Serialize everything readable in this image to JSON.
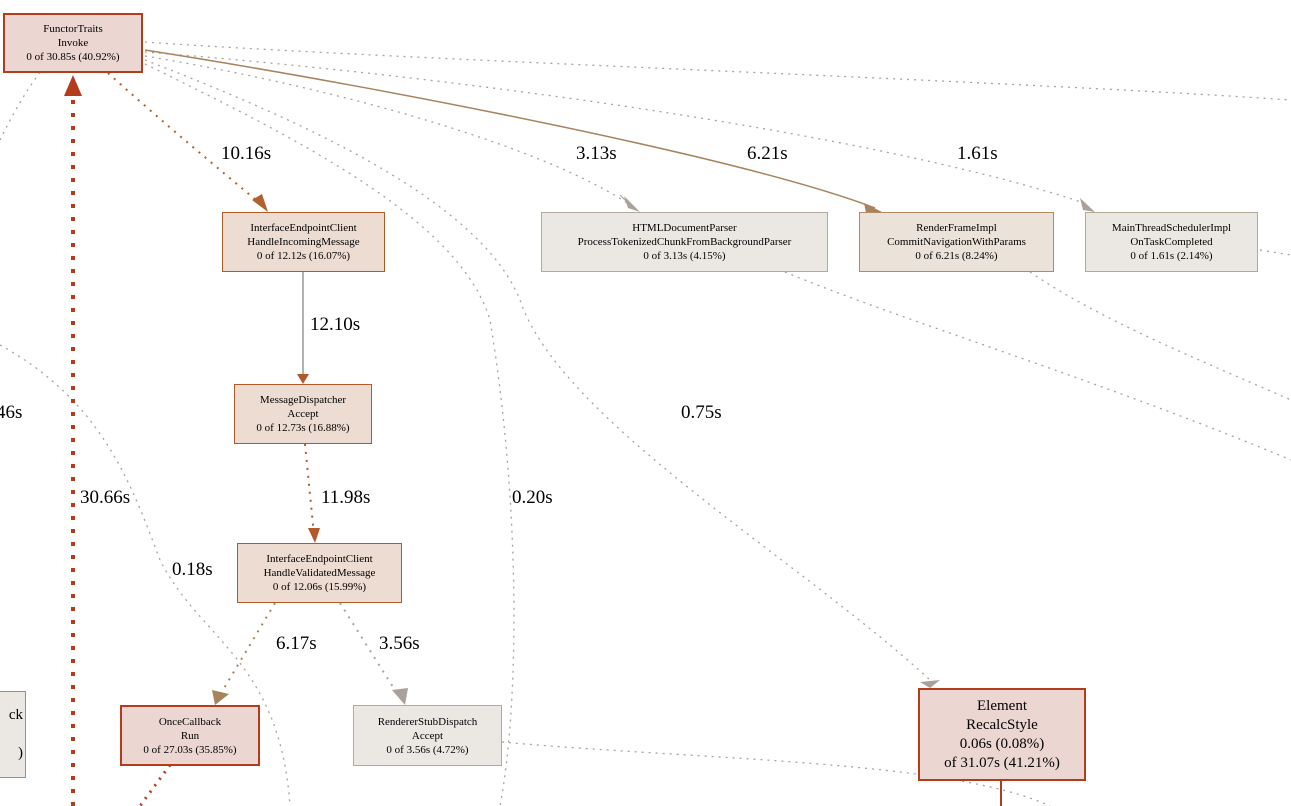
{
  "nodes": [
    {
      "id": "functortraits-invoke",
      "lines": [
        "FunctorTraits",
        "Invoke",
        "0 of 30.85s (40.92%)"
      ],
      "fill": "#ebd6d2",
      "border": "#b23c1c"
    },
    {
      "id": "iec-handle-incoming",
      "lines": [
        "InterfaceEndpointClient",
        "HandleIncomingMessage",
        "0 of 12.12s (16.07%)"
      ],
      "fill": "#ecdcd2",
      "border": "#b2592a"
    },
    {
      "id": "html-document-parser",
      "lines": [
        "HTMLDocumentParser",
        "ProcessTokenizedChunkFromBackgroundParser",
        "0 of 3.13s (4.15%)"
      ],
      "fill": "#ebe8e4",
      "border": "#b2aa9c"
    },
    {
      "id": "render-frame-impl",
      "lines": [
        "RenderFrameImpl",
        "CommitNavigationWithParams",
        "0 of 6.21s (8.24%)"
      ],
      "fill": "#ebe2da",
      "border": "#b28a5c"
    },
    {
      "id": "main-thread-scheduler",
      "lines": [
        "MainThreadSchedulerImpl",
        "OnTaskCompleted",
        "0 of 1.61s (2.14%)"
      ],
      "fill": "#ebe8e4",
      "border": "#b2a898"
    },
    {
      "id": "message-dispatcher",
      "lines": [
        "MessageDispatcher",
        "Accept",
        "0 of 12.73s (16.88%)"
      ],
      "fill": "#ecdcd2",
      "border": "#b2592a"
    },
    {
      "id": "iec-handle-validated",
      "lines": [
        "InterfaceEndpointClient",
        "HandleValidatedMessage",
        "0 of 12.06s (15.99%)"
      ],
      "fill": "#ecdcd2",
      "border": "#b2592a"
    },
    {
      "id": "oncecallback-run",
      "lines": [
        "OnceCallback",
        "Run",
        "0 of 27.03s (35.85%)"
      ],
      "fill": "#ebd6d2",
      "border": "#b23c1c"
    },
    {
      "id": "renderer-stub-dispatch",
      "lines": [
        "RendererStubDispatch",
        "Accept",
        "0 of 3.56s (4.72%)"
      ],
      "fill": "#ebe8e4",
      "border": "#b2aa9c"
    },
    {
      "id": "element-recalcstyle",
      "lines": [
        "Element",
        "RecalcStyle",
        "0.06s (0.08%)",
        "of 31.07s (41.21%)"
      ],
      "fill": "#ebd6d2",
      "border": "#b23c1c"
    },
    {
      "id": "partial-left-node",
      "lines": [
        "ck",
        "",
        ")"
      ],
      "fill": "#ebe8e4",
      "border": "#b28a5c"
    }
  ],
  "edge_labels": [
    "10.16s",
    "3.13s",
    "6.21s",
    "1.61s",
    "12.10s",
    "46s",
    "0.75s",
    "30.66s",
    "11.98s",
    "0.20s",
    "0.18s",
    "6.17s",
    "3.56s"
  ]
}
